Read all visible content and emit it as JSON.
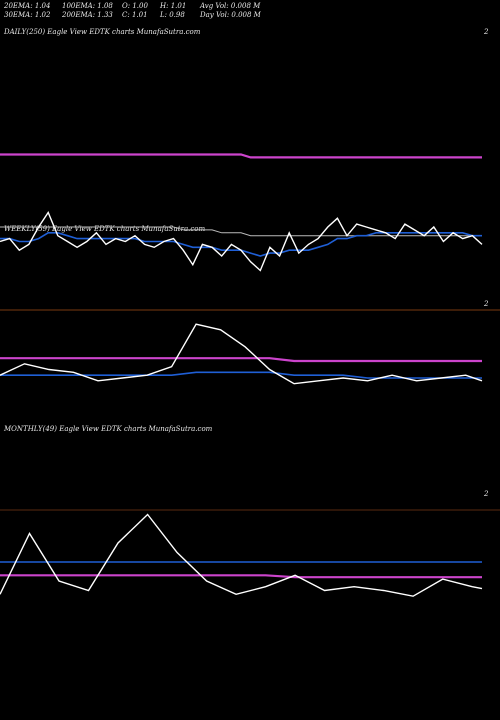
{
  "header": {
    "row1": {
      "ema20": "20EMA: 1.04",
      "ema100": "100EMA: 1.08",
      "open": "O: 1.00",
      "high": "H: 1.01",
      "avgvol": "Avg Vol: 0.008 M"
    },
    "row2": {
      "ema30": "30EMA: 1.02",
      "ema200": "200EMA: 1.33",
      "close": "C: 1.01",
      "low": "L: 0.98",
      "dayvol": "Day Vol: 0.008 M"
    }
  },
  "panels": {
    "daily": {
      "label": "DAILY(250) Eagle   View  EDTK charts MunafaSutra.com",
      "tick": "2"
    },
    "weekly": {
      "label": "WEEKLY(59) Eagle   View  EDTK charts MunafaSutra.com",
      "tick": "2"
    },
    "monthly": {
      "label": "MONTHLY(49) Eagle   View  EDTK charts MunafaSutra.com",
      "tick": "2"
    }
  },
  "colors": {
    "background": "#000000",
    "price": "#ffffff",
    "ema_short": "#1f5fd6",
    "ema_long": "#cc44cc",
    "ema_mid": "#bbbbbb",
    "grid": "#7a3a10"
  },
  "chart_data": [
    {
      "type": "line",
      "name": "daily",
      "x": [
        0,
        5,
        10,
        15,
        20,
        25,
        30,
        35,
        40,
        45,
        50,
        55,
        60,
        65,
        70,
        75,
        80,
        85,
        90,
        95,
        100,
        105,
        110,
        115,
        120,
        125,
        130,
        135,
        140,
        145,
        150,
        155,
        160,
        165,
        170,
        175,
        180,
        185,
        190,
        195,
        200,
        205,
        210,
        215,
        220,
        225,
        230,
        235,
        240,
        245,
        250
      ],
      "series": [
        {
          "values": [
            1.0,
            1.01,
            0.97,
            0.99,
            1.05,
            1.1,
            1.02,
            1.0,
            0.98,
            1.0,
            1.03,
            0.99,
            1.01,
            1.0,
            1.02,
            0.99,
            0.98,
            1.0,
            1.01,
            0.97,
            0.92,
            0.99,
            0.98,
            0.95,
            0.99,
            0.97,
            0.93,
            0.9,
            0.98,
            0.95,
            1.03,
            0.96,
            0.99,
            1.01,
            1.05,
            1.08,
            1.02,
            1.06,
            1.05,
            1.04,
            1.03,
            1.01,
            1.06,
            1.04,
            1.02,
            1.05,
            1.0,
            1.03,
            1.01,
            1.02,
            0.99
          ]
        },
        {
          "values": [
            1.01,
            1.01,
            1.0,
            1.0,
            1.01,
            1.03,
            1.03,
            1.02,
            1.01,
            1.01,
            1.01,
            1.01,
            1.01,
            1.01,
            1.01,
            1.0,
            1.0,
            1.0,
            1.0,
            0.99,
            0.98,
            0.98,
            0.98,
            0.97,
            0.97,
            0.97,
            0.96,
            0.95,
            0.96,
            0.96,
            0.97,
            0.97,
            0.97,
            0.98,
            0.99,
            1.01,
            1.01,
            1.02,
            1.02,
            1.03,
            1.03,
            1.03,
            1.03,
            1.03,
            1.03,
            1.03,
            1.03,
            1.03,
            1.03,
            1.02,
            1.02
          ]
        },
        {
          "values": [
            1.3,
            1.3,
            1.3,
            1.3,
            1.3,
            1.3,
            1.3,
            1.3,
            1.3,
            1.3,
            1.3,
            1.3,
            1.3,
            1.3,
            1.3,
            1.3,
            1.3,
            1.3,
            1.3,
            1.3,
            1.3,
            1.3,
            1.3,
            1.3,
            1.3,
            1.3,
            1.29,
            1.29,
            1.29,
            1.29,
            1.29,
            1.29,
            1.29,
            1.29,
            1.29,
            1.29,
            1.29,
            1.29,
            1.29,
            1.29,
            1.29,
            1.29,
            1.29,
            1.29,
            1.29,
            1.29,
            1.29,
            1.29,
            1.29,
            1.29,
            1.29
          ]
        },
        {
          "values": [
            1.05,
            1.05,
            1.05,
            1.05,
            1.05,
            1.05,
            1.05,
            1.05,
            1.05,
            1.05,
            1.05,
            1.05,
            1.05,
            1.05,
            1.05,
            1.05,
            1.05,
            1.05,
            1.05,
            1.04,
            1.04,
            1.04,
            1.04,
            1.03,
            1.03,
            1.03,
            1.02,
            1.02,
            1.02,
            1.02,
            1.02,
            1.02,
            1.02,
            1.02,
            1.02,
            1.02,
            1.02,
            1.02,
            1.02,
            1.02,
            1.02,
            1.02,
            1.02,
            1.02,
            1.02,
            1.02,
            1.02,
            1.02,
            1.02,
            1.02,
            1.02
          ]
        }
      ]
    },
    {
      "type": "line",
      "name": "weekly",
      "x": [
        0,
        3,
        6,
        9,
        12,
        15,
        18,
        21,
        24,
        27,
        30,
        33,
        36,
        39,
        42,
        45,
        48,
        51,
        54,
        57,
        59
      ],
      "series": [
        {
          "values": [
            1.02,
            1.06,
            1.04,
            1.03,
            1.0,
            1.01,
            1.02,
            1.05,
            1.2,
            1.18,
            1.12,
            1.04,
            0.99,
            1.0,
            1.01,
            1.0,
            1.02,
            1.0,
            1.01,
            1.02,
            1.0
          ]
        },
        {
          "values": [
            1.02,
            1.02,
            1.02,
            1.02,
            1.02,
            1.02,
            1.02,
            1.02,
            1.03,
            1.03,
            1.03,
            1.03,
            1.02,
            1.02,
            1.02,
            1.01,
            1.01,
            1.01,
            1.01,
            1.01,
            1.01
          ]
        },
        {
          "values": [
            1.08,
            1.08,
            1.08,
            1.08,
            1.08,
            1.08,
            1.08,
            1.08,
            1.08,
            1.08,
            1.08,
            1.08,
            1.07,
            1.07,
            1.07,
            1.07,
            1.07,
            1.07,
            1.07,
            1.07,
            1.07
          ]
        }
      ]
    },
    {
      "type": "line",
      "name": "monthly",
      "x": [
        0,
        3,
        6,
        9,
        12,
        15,
        18,
        21,
        24,
        27,
        30,
        33,
        36,
        39,
        42,
        45,
        48,
        49
      ],
      "series": [
        {
          "values": [
            0.98,
            1.3,
            1.05,
            1.0,
            1.25,
            1.4,
            1.2,
            1.05,
            0.98,
            1.02,
            1.08,
            1.0,
            1.02,
            1.0,
            0.97,
            1.06,
            1.02,
            1.01
          ]
        },
        {
          "values": [
            1.15,
            1.15,
            1.15,
            1.15,
            1.15,
            1.15,
            1.15,
            1.15,
            1.15,
            1.15,
            1.15,
            1.15,
            1.15,
            1.15,
            1.15,
            1.15,
            1.15,
            1.15
          ]
        },
        {
          "values": [
            1.08,
            1.08,
            1.08,
            1.08,
            1.08,
            1.08,
            1.08,
            1.08,
            1.08,
            1.08,
            1.07,
            1.07,
            1.07,
            1.07,
            1.07,
            1.07,
            1.07,
            1.07
          ]
        }
      ]
    }
  ]
}
